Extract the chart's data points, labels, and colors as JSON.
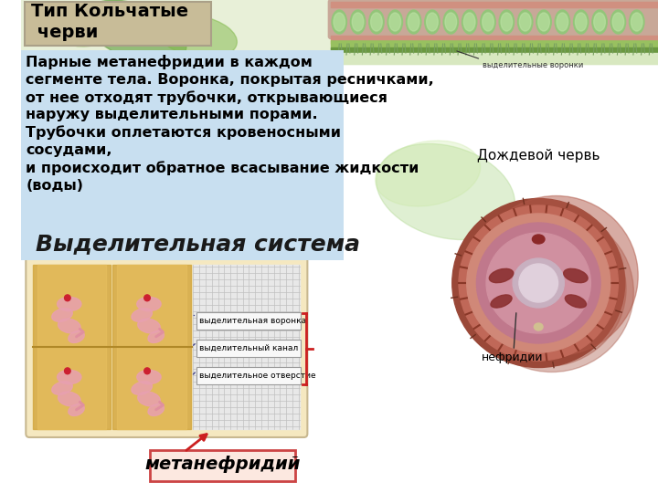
{
  "title_box_text": "Тип Кольчатые\n черви",
  "title_box_bg": "#c8bc98",
  "title_box_text_color": "#000000",
  "info_box_text": "Парные метанефридии в каждом\nсегменте тела. Воронка, покрытая ресничками,\nот нее отходят трубочки, открывающиеся\nнаружу выделительными порами.\nТрубочки оплетаются кровеносными\nсосудами,\nи происходит обратное всасывание жидкости\n(воды)",
  "info_box_bg": "#c8dff0",
  "info_box_text_color": "#000000",
  "subtitle_text": "Выделительная система",
  "subtitle_color": "#1a1a1a",
  "nephridia_label": "нефридии",
  "worm_label": "Дождевой червь",
  "metanephridii_label": "метанефридий",
  "label_voronki": "выделительная воронка",
  "label_kanal": "выделительный канал",
  "label_otverstie": "выделительное отверстие",
  "label_voronki_top": "выделительные воронки",
  "bg_color": "#ffffff",
  "slide_bg": "#ffffff",
  "top_strip_colors": [
    "#8db87a",
    "#b0cc88",
    "#e8d87c",
    "#a8c878",
    "#7aaa60",
    "#c8e0a0"
  ],
  "worm_segment_color": "#c8a898",
  "worm_segment_inner": "#e8c0b0"
}
